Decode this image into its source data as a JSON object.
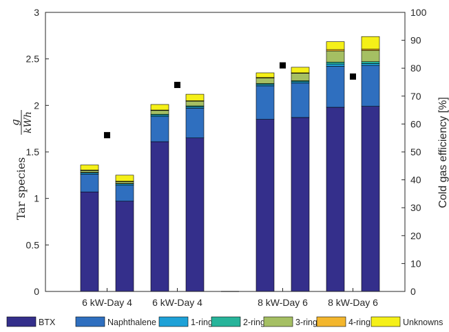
{
  "chart_data": {
    "type": "bar",
    "stacked": true,
    "xlabel": "",
    "ylabel_left": {
      "prefix": "Tar species ",
      "fraction_numerator": "g",
      "fraction_denominator": "kWh"
    },
    "ylabel_right": "Cold gas efficiency [%]",
    "ylim_left": [
      0,
      3
    ],
    "ylim_right": [
      0,
      100
    ],
    "yticks_left": [
      "0",
      "0.5",
      "1",
      "1.5",
      "2",
      "2.5",
      "3"
    ],
    "yticks_right": [
      "0",
      "10",
      "20",
      "30",
      "40",
      "50",
      "60",
      "70",
      "80",
      "90",
      "100"
    ],
    "grid": false,
    "legend_position": "bottom",
    "category_labels": [
      "6 kW-Day 4",
      "6 kW-Day 4",
      "8 kW-Day 6",
      "8 kW-Day 6"
    ],
    "series": [
      {
        "name": "BTX",
        "color": "#342f8b"
      },
      {
        "name": "Naphthalene",
        "color": "#2f6fbf"
      },
      {
        "name": "1-ring",
        "color": "#1ea1d7"
      },
      {
        "name": "2-ring",
        "color": "#27b49a"
      },
      {
        "name": "3-ring",
        "color": "#a5bf63"
      },
      {
        "name": "4-ring",
        "color": "#f3b62d"
      },
      {
        "name": "Unknowns",
        "color": "#f5f018"
      }
    ],
    "bars": [
      {
        "pos": 1,
        "values": [
          1.07,
          0.19,
          0.015,
          0.005,
          0.02,
          0.005,
          0.055
        ]
      },
      {
        "pos": 2,
        "values": [
          0.97,
          0.17,
          0.015,
          0.005,
          0.02,
          0.005,
          0.065
        ]
      },
      {
        "pos": 3,
        "values": [
          1.61,
          0.27,
          0.015,
          0.01,
          0.04,
          0.005,
          0.06
        ]
      },
      {
        "pos": 4,
        "values": [
          1.65,
          0.32,
          0.015,
          0.01,
          0.05,
          0.005,
          0.07
        ]
      },
      {
        "pos": 5,
        "values": [
          0.0,
          0.0,
          0.0,
          0.0,
          0.0,
          0.0,
          0.0
        ]
      },
      {
        "pos": 6,
        "values": [
          1.85,
          0.36,
          0.015,
          0.01,
          0.06,
          0.005,
          0.05
        ]
      },
      {
        "pos": 7,
        "values": [
          1.87,
          0.37,
          0.015,
          0.01,
          0.08,
          0.005,
          0.06
        ]
      },
      {
        "pos": 8,
        "values": [
          1.98,
          0.44,
          0.025,
          0.02,
          0.12,
          0.015,
          0.085
        ]
      },
      {
        "pos": 9,
        "values": [
          1.99,
          0.44,
          0.02,
          0.02,
          0.12,
          0.015,
          0.135
        ]
      }
    ],
    "efficiency_points": [
      {
        "pos": 1.5,
        "value": 56
      },
      {
        "pos": 3.5,
        "value": 74
      },
      {
        "pos": 6.5,
        "value": 81
      },
      {
        "pos": 8.5,
        "value": 77
      }
    ]
  }
}
